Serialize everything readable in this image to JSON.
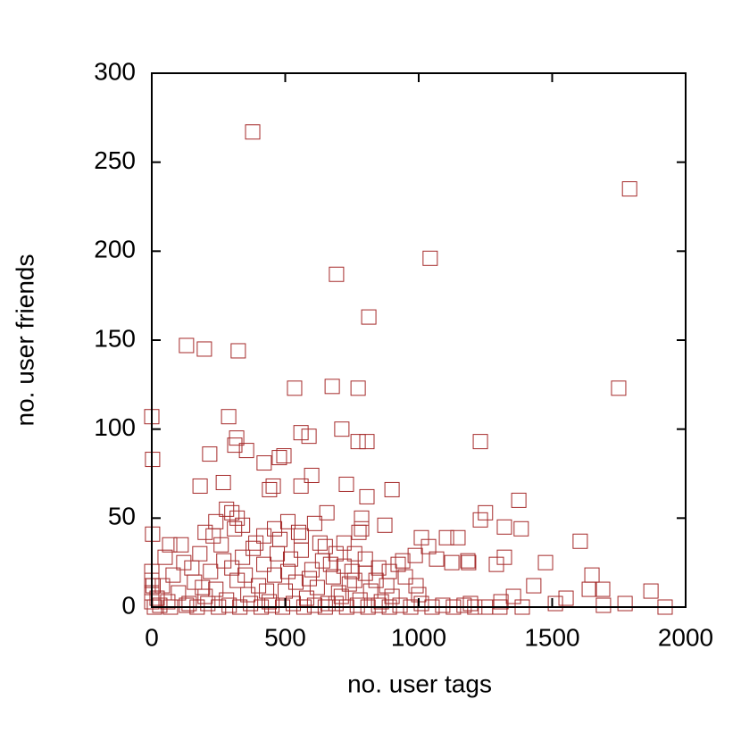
{
  "chart_data": {
    "type": "scatter",
    "xlabel": "no. user tags",
    "ylabel": "no. user friends",
    "color": "#a52a2a",
    "xlim": [
      0,
      2000
    ],
    "xticks": [
      0,
      500,
      1000,
      1500,
      2000
    ],
    "ylim": [
      0,
      300
    ],
    "yticks": [
      0,
      50,
      100,
      150,
      200,
      250,
      300
    ],
    "x": [
      378,
      1790,
      1043,
      692,
      813,
      130,
      197,
      324,
      535,
      676,
      773,
      1749,
      0,
      288,
      3,
      712,
      559,
      589,
      806,
      773,
      318,
      311,
      355,
      217,
      478,
      495,
      421,
      599,
      1231,
      729,
      268,
      181,
      441,
      455,
      559,
      900,
      806,
      1375,
      1250,
      1231,
      1321,
      1384,
      873,
      1104,
      1147,
      1010,
      1605,
      3,
      67,
      656,
      786,
      786,
      776,
      1475,
      1649,
      1639,
      1689,
      1870,
      1923,
      1773,
      1692,
      1512,
      1552,
      1431,
      1355,
      1308,
      1291,
      1321,
      1388,
      1304,
      1194,
      1187,
      1184,
      1124,
      1067,
      1037,
      987,
      923,
      940,
      20,
      40,
      60,
      80,
      100,
      120,
      140,
      160,
      180,
      200,
      220,
      240,
      260,
      280,
      300,
      320,
      340,
      360,
      380,
      400,
      420,
      440,
      460,
      480,
      500,
      520,
      540,
      560,
      580,
      600,
      620,
      640,
      660,
      680,
      700,
      720,
      740,
      760,
      780,
      800,
      820,
      840,
      860,
      880,
      900,
      50,
      110,
      150,
      190,
      230,
      270,
      310,
      350,
      390,
      430,
      470,
      510,
      550,
      590,
      630,
      670,
      710,
      750,
      10,
      30,
      70,
      130,
      170,
      210,
      250,
      290,
      330,
      370,
      410,
      450,
      490,
      530,
      570,
      610,
      650,
      690,
      730,
      770,
      810,
      850,
      890,
      930,
      970,
      1010,
      1050,
      1090,
      1130,
      1170,
      1210,
      1250,
      0,
      0,
      0,
      0,
      5,
      240,
      280,
      300,
      320,
      340,
      200,
      420,
      460,
      510,
      560,
      610,
      650,
      690,
      720,
      760,
      800,
      850,
      890,
      950,
      990,
      1000
    ],
    "values": [
      267,
      235,
      196,
      187,
      163,
      147,
      145,
      144,
      123,
      124,
      123,
      123,
      107,
      107,
      83,
      100,
      98,
      96,
      93,
      93,
      95,
      91,
      88,
      86,
      84,
      85,
      81,
      74,
      93,
      69,
      70,
      68,
      66,
      68,
      68,
      66,
      62,
      60,
      53,
      49,
      45,
      44,
      46,
      39,
      39,
      39,
      37,
      41,
      35,
      53,
      50,
      44,
      42,
      25,
      18,
      10,
      10,
      9,
      0,
      2,
      1,
      2,
      5,
      12,
      6,
      3,
      24,
      28,
      0,
      0,
      2,
      25,
      26,
      25,
      27,
      34,
      29,
      24,
      26,
      5,
      12,
      3,
      18,
      8,
      25,
      2,
      14,
      30,
      6,
      20,
      10,
      35,
      4,
      22,
      15,
      28,
      7,
      33,
      12,
      24,
      3,
      18,
      38,
      9,
      27,
      14,
      32,
      5,
      21,
      11,
      26,
      2,
      17,
      8,
      23,
      13,
      30,
      4,
      19,
      9,
      15,
      3,
      12,
      6,
      28,
      35,
      22,
      11,
      40,
      26,
      44,
      18,
      36,
      9,
      30,
      20,
      42,
      16,
      36,
      24,
      6,
      20,
      0,
      1,
      0,
      1,
      0,
      2,
      0,
      1,
      0,
      2,
      0,
      1,
      0,
      2,
      0,
      1,
      0,
      2,
      0,
      1,
      0,
      1,
      0,
      1,
      0,
      2,
      0,
      1,
      0,
      1,
      0,
      0,
      3,
      8,
      15,
      20,
      12,
      48,
      55,
      53,
      50,
      46,
      42,
      40,
      44,
      48,
      40,
      47,
      34,
      30,
      36,
      15,
      27,
      22,
      20,
      17,
      12,
      7
    ]
  }
}
